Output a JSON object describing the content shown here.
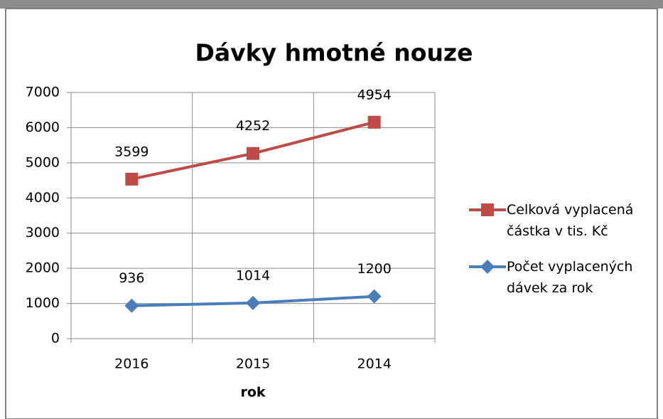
{
  "chart_data": {
    "type": "line",
    "stacked": true,
    "title": "Dávky hmotné nouze",
    "x_label": "rok",
    "categories": [
      "2016",
      "2015",
      "2014"
    ],
    "series": [
      {
        "name": "Počet vyplacených dávek za rok",
        "color": "#4a7ebb",
        "marker": "diamond",
        "values": [
          936,
          1014,
          1200
        ]
      },
      {
        "name": "Celková vyplacená částka v tis. Kč",
        "color": "#be4b48",
        "marker": "square",
        "values": [
          3599,
          4252,
          4954
        ]
      }
    ],
    "ylim": [
      0,
      7000
    ],
    "yticks": [
      0,
      1000,
      2000,
      3000,
      4000,
      5000,
      6000,
      7000
    ],
    "grid": true,
    "legend": "right"
  }
}
